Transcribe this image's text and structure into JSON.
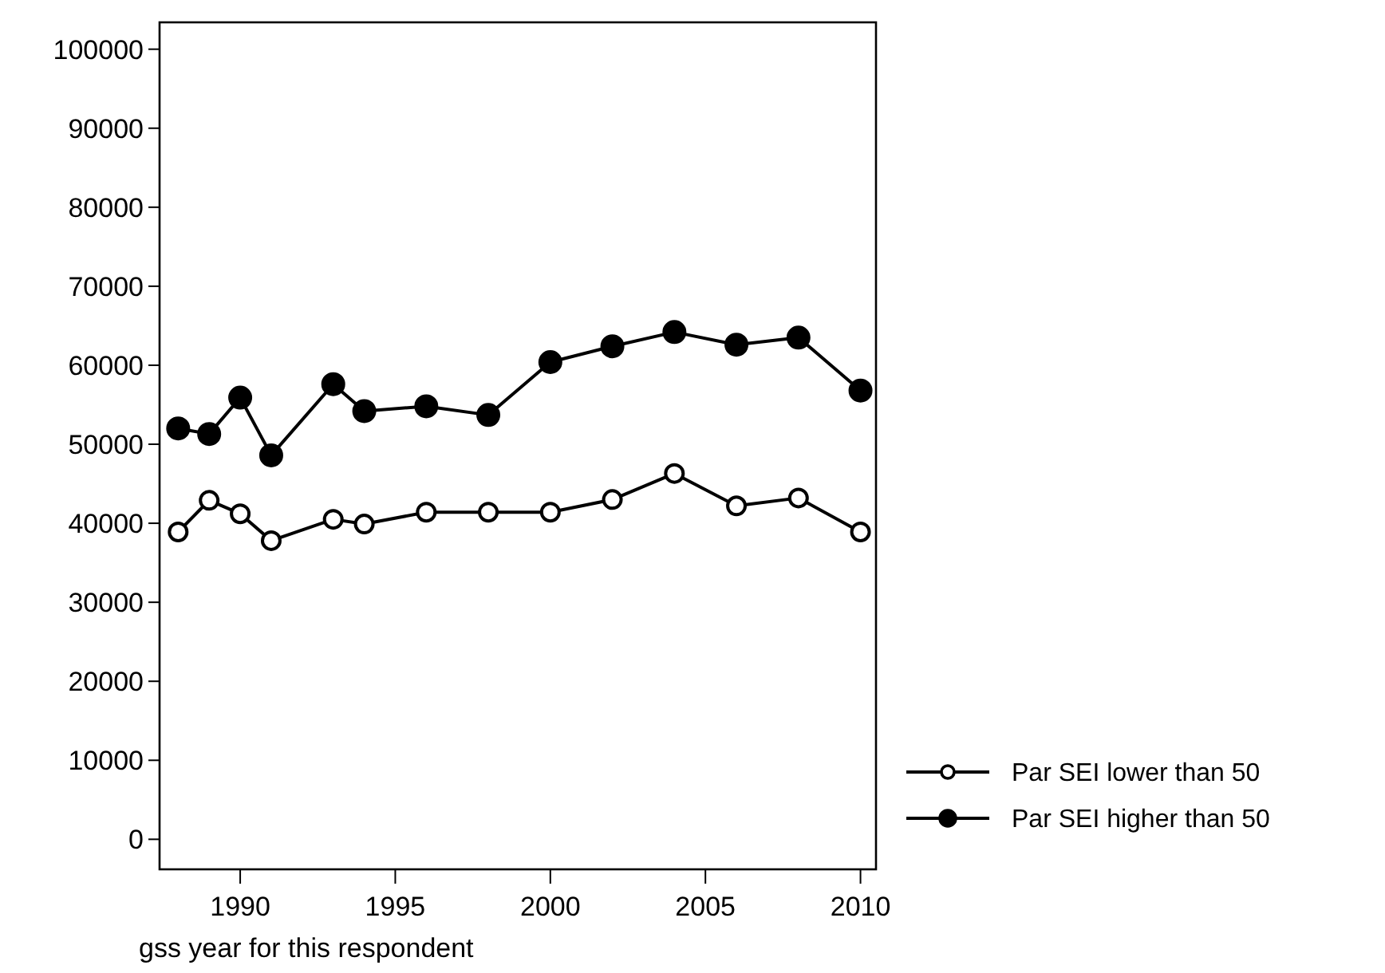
{
  "chart_data": {
    "type": "line",
    "xlabel": "gss year for this respondent",
    "x": [
      1988,
      1989,
      1990,
      1991,
      1993,
      1994,
      1996,
      1998,
      2000,
      2002,
      2004,
      2006,
      2008,
      2010
    ],
    "series": [
      {
        "name": "Par SEI lower than 50",
        "color": "#000000",
        "marker": "circle",
        "values": [
          38900,
          42900,
          41200,
          37800,
          40500,
          39900,
          41400,
          41400,
          41400,
          43000,
          46300,
          42200,
          43200,
          38900
        ]
      },
      {
        "name": "Par SEI higher than 50",
        "color": "#000000",
        "marker": "circle",
        "values": [
          52000,
          51300,
          55900,
          48600,
          57600,
          54200,
          54800,
          53700,
          60400,
          62400,
          64200,
          62600,
          63500,
          56800
        ]
      }
    ],
    "xlim": [
      1987.4,
      2010.5
    ],
    "xticks": [
      1990,
      1995,
      2000,
      2005,
      2010
    ],
    "ylim": [
      -3800,
      103400
    ],
    "yticks": [
      0,
      10000,
      20000,
      30000,
      40000,
      50000,
      60000,
      70000,
      80000,
      90000,
      100000
    ],
    "grid": false,
    "legend": "bottom right",
    "line_style": "solid"
  }
}
